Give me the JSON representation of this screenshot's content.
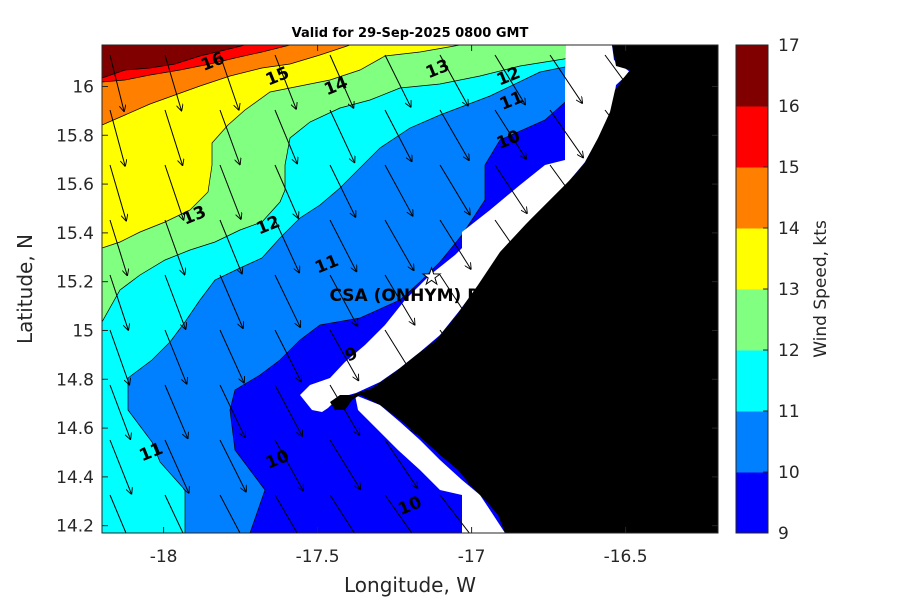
{
  "chart_data": {
    "type": "contour-map",
    "title": "Valid for 29-Sep-2025 0800 GMT",
    "xlabel": "Longitude, W",
    "ylabel": "Latitude, N",
    "xlim": [
      -18.2,
      -16.2
    ],
    "ylim": [
      14.17,
      16.17
    ],
    "x_ticks": [
      {
        "value": -18,
        "label": "-18"
      },
      {
        "value": -17.5,
        "label": "-17.5"
      },
      {
        "value": -17,
        "label": "-17"
      },
      {
        "value": -16.5,
        "label": "-16.5"
      }
    ],
    "y_ticks": [
      {
        "value": 16,
        "label": "16"
      },
      {
        "value": 15.8,
        "label": "15.8"
      },
      {
        "value": 15.6,
        "label": "15.6"
      },
      {
        "value": 15.4,
        "label": "15.4"
      },
      {
        "value": 15.2,
        "label": "15.2"
      },
      {
        "value": 15,
        "label": "15"
      },
      {
        "value": 14.8,
        "label": "14.8"
      },
      {
        "value": 14.6,
        "label": "14.6"
      },
      {
        "value": 14.4,
        "label": "14.4"
      },
      {
        "value": 14.2,
        "label": "14.2"
      }
    ],
    "colorbar": {
      "label": "Wind Speed, kts",
      "min": 9,
      "max": 17,
      "tick_labels": [
        "9",
        "10",
        "11",
        "12",
        "13",
        "14",
        "15",
        "16",
        "17"
      ],
      "colors": [
        "#0000ff",
        "#0080ff",
        "#00ffff",
        "#80ff80",
        "#ffff00",
        "#ff8000",
        "#ff0000",
        "#800000"
      ]
    },
    "contour_labels": [
      {
        "text": "16",
        "lon": -17.84,
        "lat": 16.1
      },
      {
        "text": "15",
        "lon": -17.63,
        "lat": 16.04
      },
      {
        "text": "14",
        "lon": -17.44,
        "lat": 16.0
      },
      {
        "text": "13",
        "lon": -17.11,
        "lat": 16.07
      },
      {
        "text": "12",
        "lon": -16.88,
        "lat": 16.04
      },
      {
        "text": "11",
        "lon": -16.87,
        "lat": 15.94
      },
      {
        "text": "10",
        "lon": -16.88,
        "lat": 15.78
      },
      {
        "text": "13",
        "lon": -17.9,
        "lat": 15.47
      },
      {
        "text": "12",
        "lon": -17.66,
        "lat": 15.43
      },
      {
        "text": "11",
        "lon": -17.47,
        "lat": 15.27
      },
      {
        "text": "9",
        "lon": -17.39,
        "lat": 14.9
      },
      {
        "text": "11",
        "lon": -18.04,
        "lat": 14.5
      },
      {
        "text": "10",
        "lon": -17.63,
        "lat": 14.47
      },
      {
        "text": "10",
        "lon": -17.2,
        "lat": 14.28
      }
    ],
    "site": {
      "label": "CSA (ONHYM) RPL EP",
      "lon": -17.13,
      "lat": 15.22
    },
    "wind_vector_direction": "from NNW toward SSE"
  }
}
